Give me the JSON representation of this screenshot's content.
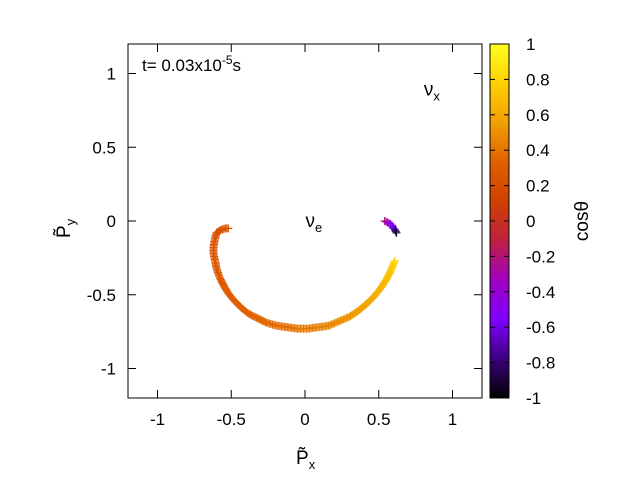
{
  "chart_data": {
    "type": "scatter",
    "title": "",
    "xlabel": "P̃x",
    "ylabel": "P̃y",
    "xlabel_main": "P̃",
    "xlabel_sub": "x",
    "ylabel_main": "P̃",
    "ylabel_sub": "y",
    "xlim": [
      -1.2,
      1.2
    ],
    "ylim": [
      -1.2,
      1.2
    ],
    "xticks": [
      "-1",
      "-0.5",
      "0",
      "0.5",
      "1"
    ],
    "xtick_values": [
      -1,
      -0.5,
      0,
      0.5,
      1
    ],
    "yticks": [
      "1",
      "0.5",
      "0",
      "-0.5",
      "-1"
    ],
    "ytick_values": [
      1,
      0.5,
      0,
      -0.5,
      -1
    ],
    "grid": false,
    "marker": "+",
    "colorbar": {
      "label": "cosθ",
      "range": [
        -1,
        1
      ],
      "ticks": [
        "1",
        "0.8",
        "0.6",
        "0.4",
        "0.2",
        "0",
        "-0.2",
        "-0.4",
        "-0.6",
        "-0.8",
        "-1"
      ],
      "tick_values": [
        1,
        0.8,
        0.6,
        0.4,
        0.2,
        0,
        -0.2,
        -0.4,
        -0.6,
        -0.8,
        -1
      ],
      "palette": [
        "#000000",
        "#3c0080",
        "#8000ff",
        "#a000c0",
        "#c02040",
        "#d04000",
        "#e06000",
        "#f0a000",
        "#ffd000",
        "#ffff20"
      ]
    },
    "time_label": {
      "prefix": "t=  0.03x10",
      "exponent": "-5",
      "suffix": "s"
    },
    "species_labels": [
      {
        "main": "ν",
        "sub": "e",
        "x": 0.06,
        "y": -0.04
      },
      {
        "main": "ν",
        "sub": "x",
        "x": 0.86,
        "y": 0.85
      }
    ],
    "series": [
      {
        "points": [
          {
            "x": -0.52,
            "y": -0.05,
            "c": 0.22
          },
          {
            "x": -0.54,
            "y": -0.05,
            "c": 0.24
          },
          {
            "x": -0.57,
            "y": -0.06,
            "c": 0.24
          },
          {
            "x": -0.6,
            "y": -0.08,
            "c": 0.24
          },
          {
            "x": -0.61,
            "y": -0.12,
            "c": 0.25
          },
          {
            "x": -0.62,
            "y": -0.17,
            "c": 0.25
          },
          {
            "x": -0.62,
            "y": -0.22,
            "c": 0.26
          },
          {
            "x": -0.61,
            "y": -0.27,
            "c": 0.27
          },
          {
            "x": -0.6,
            "y": -0.32,
            "c": 0.28
          },
          {
            "x": -0.58,
            "y": -0.38,
            "c": 0.29
          },
          {
            "x": -0.55,
            "y": -0.44,
            "c": 0.3
          },
          {
            "x": -0.52,
            "y": -0.49,
            "c": 0.31
          },
          {
            "x": -0.48,
            "y": -0.54,
            "c": 0.32
          },
          {
            "x": -0.43,
            "y": -0.59,
            "c": 0.33
          },
          {
            "x": -0.38,
            "y": -0.63,
            "c": 0.34
          },
          {
            "x": -0.32,
            "y": -0.66,
            "c": 0.35
          },
          {
            "x": -0.26,
            "y": -0.69,
            "c": 0.36
          },
          {
            "x": -0.19,
            "y": -0.71,
            "c": 0.37
          },
          {
            "x": -0.12,
            "y": -0.72,
            "c": 0.38
          },
          {
            "x": -0.05,
            "y": -0.73,
            "c": 0.4
          },
          {
            "x": 0.02,
            "y": -0.73,
            "c": 0.42
          },
          {
            "x": 0.09,
            "y": -0.72,
            "c": 0.44
          },
          {
            "x": 0.16,
            "y": -0.71,
            "c": 0.46
          },
          {
            "x": 0.23,
            "y": -0.68,
            "c": 0.49
          },
          {
            "x": 0.3,
            "y": -0.65,
            "c": 0.52
          },
          {
            "x": 0.36,
            "y": -0.61,
            "c": 0.55
          },
          {
            "x": 0.42,
            "y": -0.56,
            "c": 0.58
          },
          {
            "x": 0.47,
            "y": -0.51,
            "c": 0.61
          },
          {
            "x": 0.51,
            "y": -0.46,
            "c": 0.64
          },
          {
            "x": 0.55,
            "y": -0.4,
            "c": 0.68
          },
          {
            "x": 0.58,
            "y": -0.34,
            "c": 0.72
          },
          {
            "x": 0.6,
            "y": -0.29,
            "c": 0.76
          },
          {
            "x": 0.61,
            "y": -0.27,
            "c": 0.8
          }
        ]
      },
      {
        "points": [
          {
            "x": 0.54,
            "y": 0.0,
            "c": -0.2
          },
          {
            "x": 0.56,
            "y": -0.01,
            "c": -0.35
          },
          {
            "x": 0.58,
            "y": -0.02,
            "c": -0.45
          },
          {
            "x": 0.59,
            "y": -0.03,
            "c": -0.55
          },
          {
            "x": 0.6,
            "y": -0.05,
            "c": -0.65
          },
          {
            "x": 0.61,
            "y": -0.06,
            "c": -0.78
          },
          {
            "x": 0.62,
            "y": -0.08,
            "c": -0.92
          }
        ]
      }
    ]
  }
}
